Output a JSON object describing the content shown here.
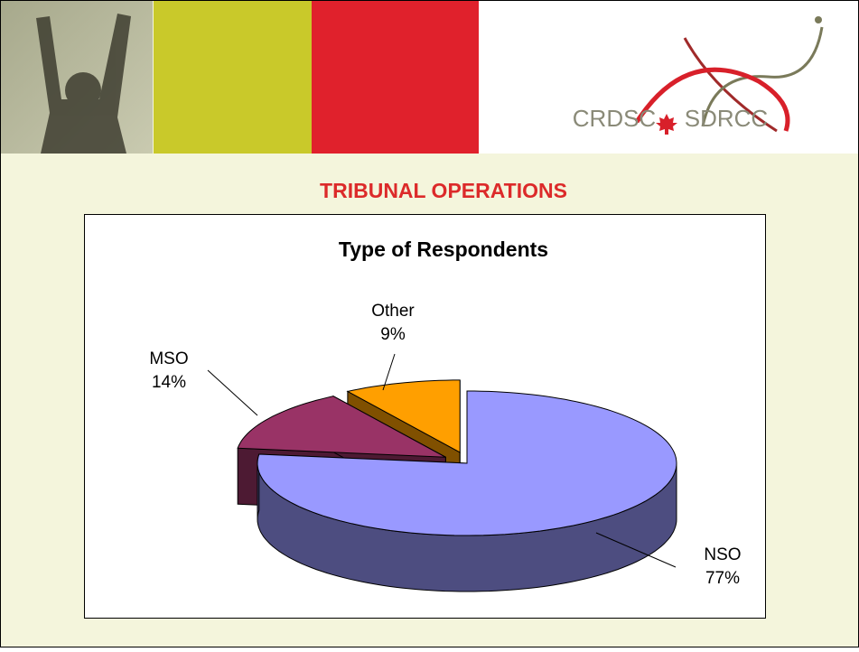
{
  "slide": {
    "title": "TRIBUNAL OPERATIONS",
    "logo": {
      "left": "CRDSC",
      "right": "SDRCC"
    }
  },
  "chart_data": {
    "type": "pie",
    "title": "Type of Respondents",
    "categories": [
      "NSO",
      "MSO",
      "Other"
    ],
    "values": [
      77,
      14,
      9
    ],
    "value_labels": [
      "77%",
      "14%",
      "9%"
    ],
    "colors": [
      "#9999ff",
      "#993366",
      "#ff9f00"
    ]
  }
}
